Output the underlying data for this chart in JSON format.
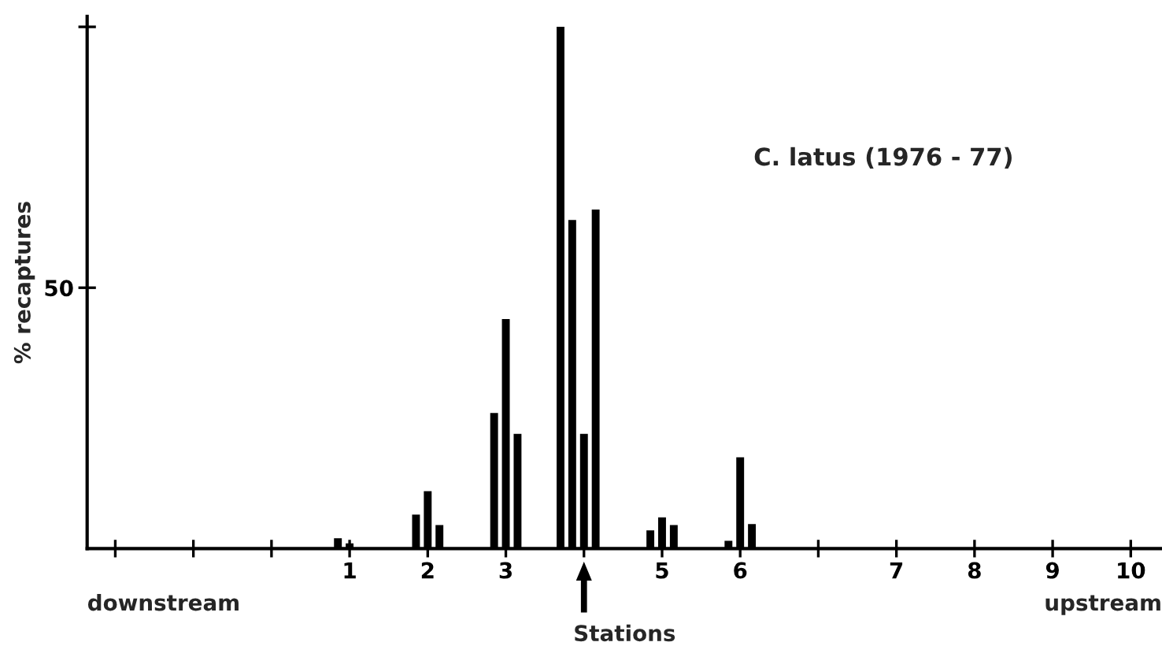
{
  "chart_data": {
    "type": "bar",
    "title": "C. latus (1976 - 77)",
    "xlabel": "Stations",
    "ylabel": "% recaptures",
    "annotations": [
      "downstream",
      "upstream"
    ],
    "categories": [
      null,
      null,
      null,
      "1",
      "2",
      "3",
      null,
      "5",
      "6",
      null,
      "7",
      "8",
      "9",
      "10"
    ],
    "series": [
      {
        "color": "#000000",
        "values": [
          null,
          null,
          null,
          null,
          null,
          null,
          100,
          null,
          null,
          null,
          null,
          null,
          null,
          null
        ]
      },
      {
        "color": "#000000",
        "values": [
          null,
          null,
          null,
          2,
          6.5,
          26,
          63,
          3.5,
          1.5,
          null,
          null,
          null,
          null,
          null
        ]
      },
      {
        "color": "#000000",
        "values": [
          null,
          null,
          null,
          1,
          11,
          44,
          22,
          6,
          17.5,
          null,
          null,
          null,
          null,
          null
        ]
      },
      {
        "color": "#000000",
        "values": [
          null,
          null,
          null,
          null,
          4.5,
          22,
          65,
          4.5,
          4.7,
          null,
          null,
          null,
          null,
          null
        ]
      }
    ],
    "ylim": [
      0,
      102
    ],
    "yticks": [
      50,
      {
        "value": 100,
        "label": null
      }
    ],
    "grid": false
  }
}
